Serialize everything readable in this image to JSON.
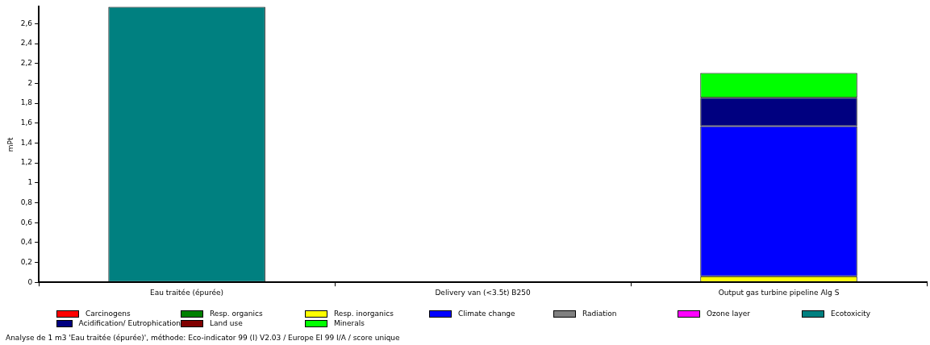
{
  "chart_data": {
    "type": "bar",
    "stacked": true,
    "ylabel": "mPt",
    "categories": [
      "Eau traitée (épurée)",
      "Delivery van (<3.5t) B250",
      "Output gas turbine pipeline Alg S"
    ],
    "series": [
      {
        "name": "Carcinogens",
        "color": "#ff0000",
        "values": [
          0,
          0,
          0
        ]
      },
      {
        "name": "Resp. organics",
        "color": "#008000",
        "values": [
          0,
          0,
          0
        ]
      },
      {
        "name": "Resp. inorganics",
        "color": "#ffff00",
        "values": [
          0,
          0,
          0.06
        ]
      },
      {
        "name": "Climate change",
        "color": "#0000ff",
        "values": [
          0,
          0,
          1.51
        ]
      },
      {
        "name": "Radiation",
        "color": "#808080",
        "values": [
          0,
          0,
          0
        ]
      },
      {
        "name": "Ozone layer",
        "color": "#ff00ff",
        "values": [
          0,
          0,
          0
        ]
      },
      {
        "name": "Ecotoxicity",
        "color": "#008080",
        "values": [
          2.77,
          0,
          0
        ]
      },
      {
        "name": "Acidification/ Eutrophication",
        "color": "#000080",
        "values": [
          0,
          0,
          0.285
        ]
      },
      {
        "name": "Land use",
        "color": "#800000",
        "values": [
          0,
          0,
          0
        ]
      },
      {
        "name": "Minerals",
        "color": "#00ff00",
        "values": [
          0,
          0,
          0.25
        ]
      }
    ],
    "ylim": [
      0,
      2.77
    ],
    "yticks": [
      0,
      {
        "value": 0.2,
        "label": "0,2"
      },
      {
        "value": 0.4,
        "label": "0,4"
      },
      {
        "value": 0.6,
        "label": "0,6"
      },
      {
        "value": 0.8,
        "label": "0,8"
      },
      1,
      {
        "value": 1.2,
        "label": "1,2"
      },
      {
        "value": 1.4,
        "label": "1,4"
      },
      {
        "value": 1.6,
        "label": "1,6"
      },
      {
        "value": 1.8,
        "label": "1,8"
      },
      2,
      {
        "value": 2.2,
        "label": "2,2"
      },
      {
        "value": 2.4,
        "label": "2,4"
      },
      {
        "value": 2.6,
        "label": "2,6"
      }
    ],
    "grid": false,
    "legend": "bottom",
    "annotations": [
      "Analyse de 1 m3 'Eau traitée (épurée)', méthode: Eco-indicator 99 (I) V2.03 / Europe EI 99 I/A / score unique"
    ]
  }
}
